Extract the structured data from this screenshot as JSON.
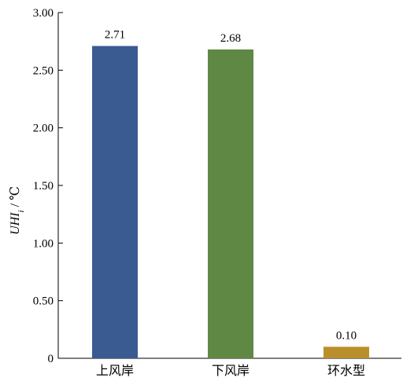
{
  "chart_data": {
    "type": "bar",
    "title": "",
    "xlabel": "",
    "ylabel": {
      "main": "UHI",
      "subscript": "i",
      "unit": " / ℃"
    },
    "ylim": [
      0,
      3.0
    ],
    "yticks": [
      0,
      0.5,
      1.0,
      1.5,
      2.0,
      2.5,
      3.0
    ],
    "ytick_labels": [
      "0",
      "0.50",
      "1.00",
      "1.50",
      "2.00",
      "2.50",
      "3.00"
    ],
    "categories": [
      "上风岸",
      "下风岸",
      "环水型"
    ],
    "values": [
      2.71,
      2.68,
      0.1
    ],
    "value_labels": [
      "2.71",
      "2.68",
      "0.10"
    ],
    "colors": [
      "#3a5a92",
      "#5e8843",
      "#b98f2c"
    ],
    "grid": false,
    "legend": "none"
  }
}
